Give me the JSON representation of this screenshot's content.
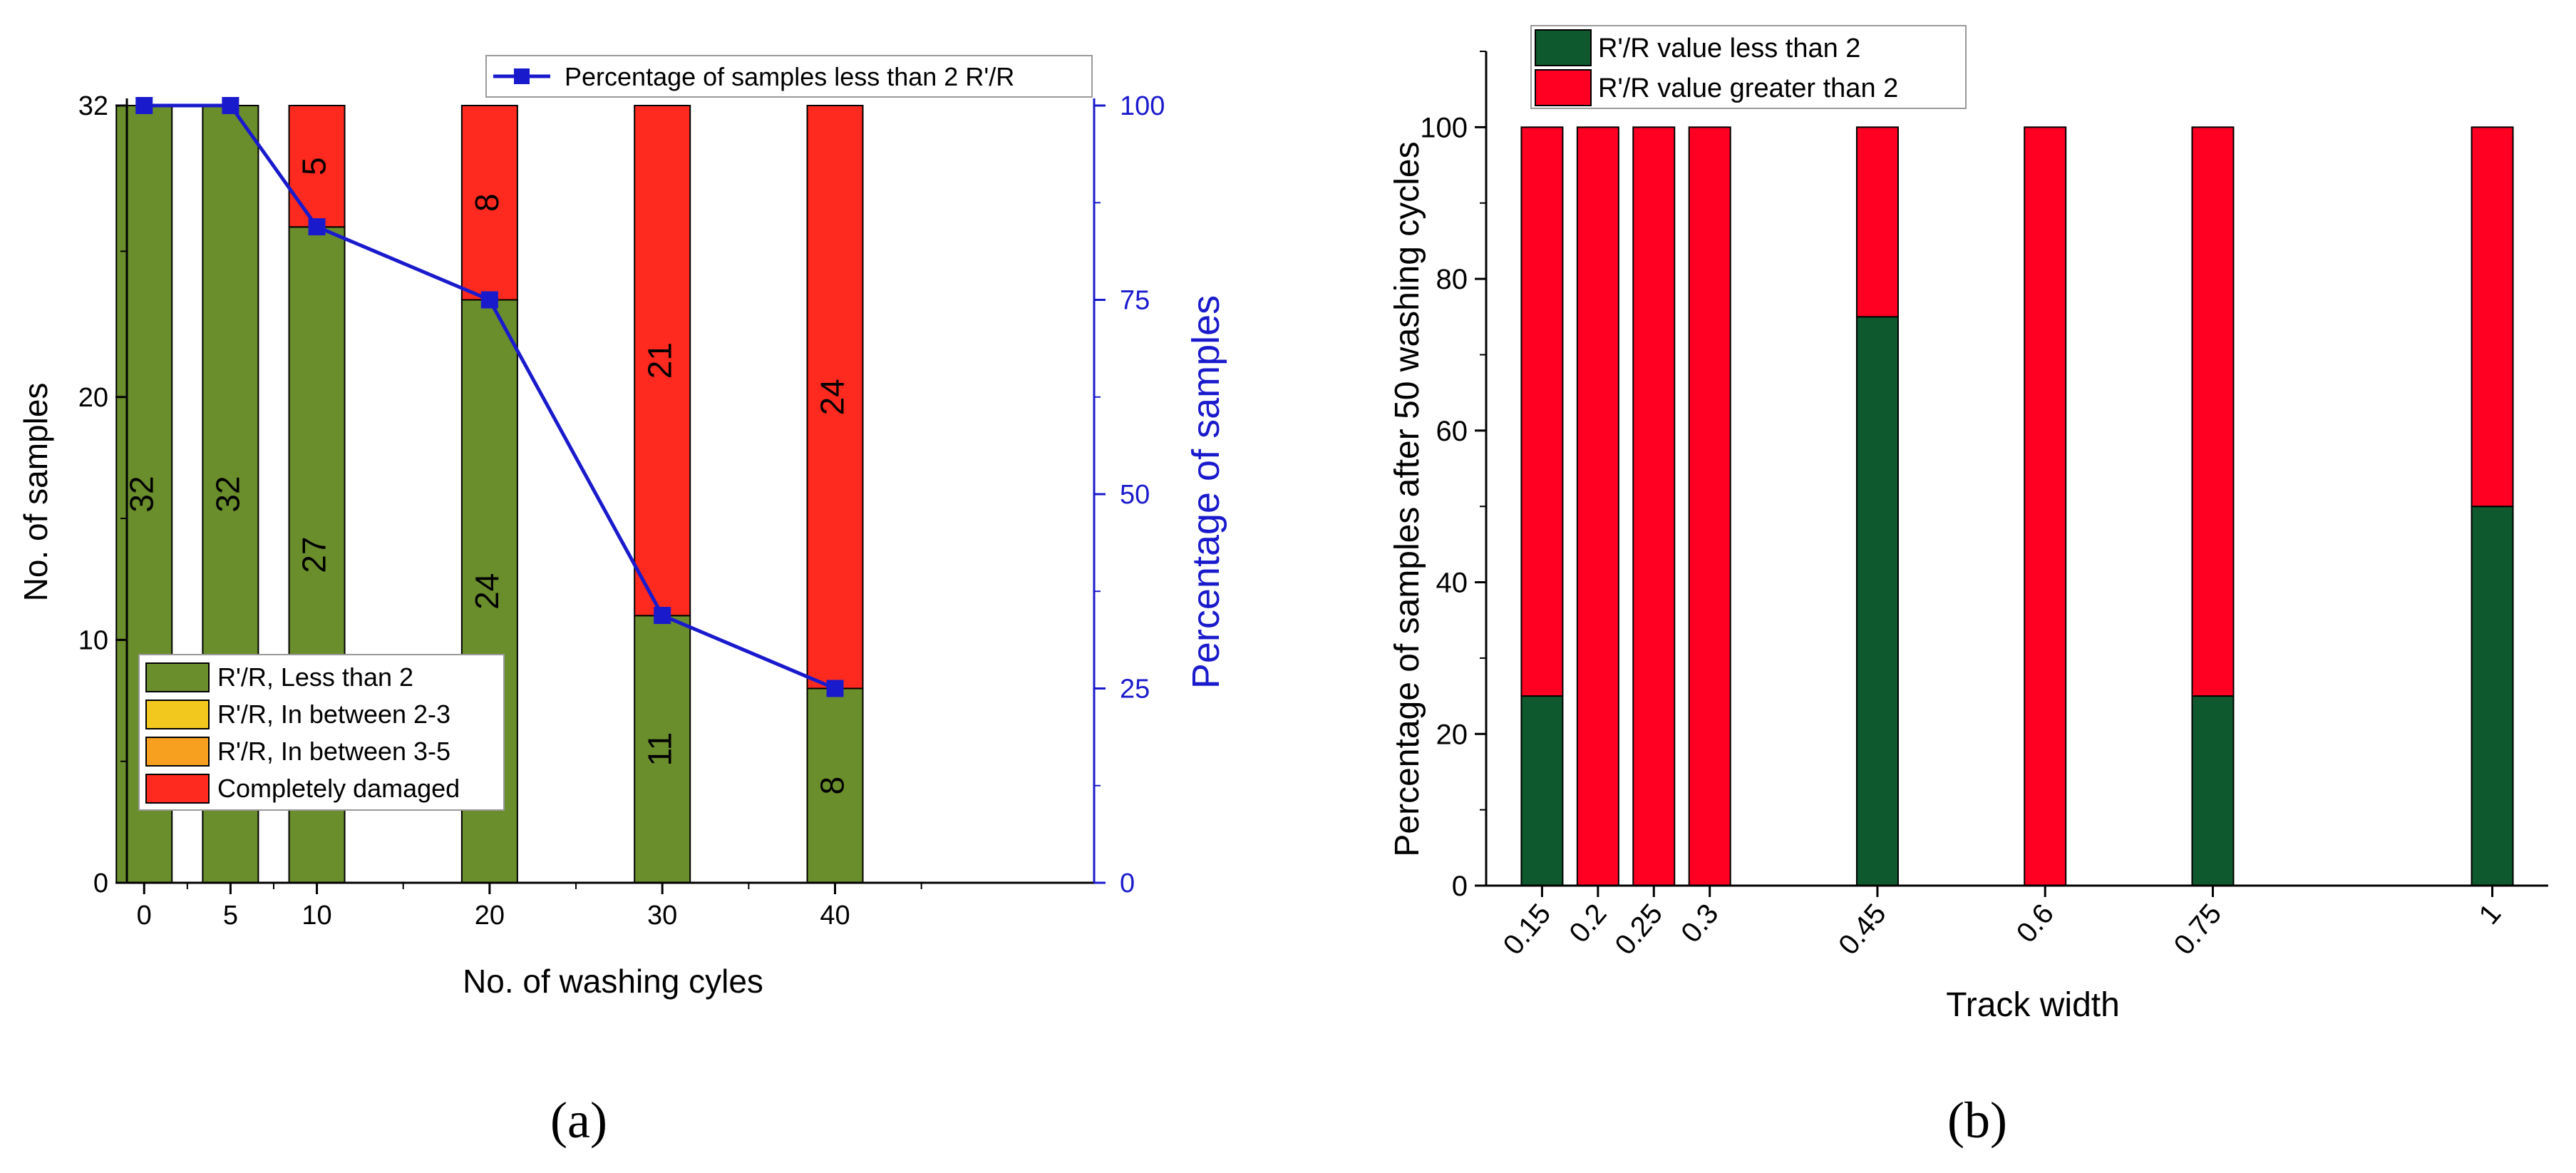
{
  "chart_data": [
    {
      "type": "bar",
      "panel": "a",
      "caption": "(a)",
      "categories": [
        "0",
        "5",
        "10",
        "20",
        "30",
        "40"
      ],
      "x": [
        0,
        5,
        10,
        20,
        30,
        40
      ],
      "xlabel": "No. of washing cyles",
      "ylabel": "No. of samples",
      "y2label": "Percentage of samples",
      "xlim": [
        -1,
        55
      ],
      "ylim": [
        0,
        32
      ],
      "y2lim": [
        0,
        100
      ],
      "xticks": [
        0,
        5,
        10,
        20,
        30,
        40
      ],
      "yticks": [
        0,
        10,
        20,
        32
      ],
      "y2ticks": [
        0,
        25,
        50,
        75,
        100
      ],
      "series": [
        {
          "name": "R'/R, Less than 2",
          "color": "#6b8e2c",
          "values": [
            32,
            32,
            27,
            24,
            11,
            8
          ],
          "labels": [
            "32",
            "32",
            "27",
            "24",
            "11",
            "8"
          ]
        },
        {
          "name": "R'/R, In between 2-3",
          "color": "#f2c81e",
          "values": [
            0,
            0,
            0,
            0,
            0,
            0
          ]
        },
        {
          "name": "R'/R, In between 3-5",
          "color": "#f7a020",
          "values": [
            0,
            0,
            0,
            0,
            0,
            0
          ]
        },
        {
          "name": "Completely damaged",
          "color": "#ff2a1f",
          "values": [
            0,
            0,
            5,
            8,
            21,
            24
          ],
          "labels": [
            "",
            "",
            "5",
            "8",
            "21",
            "24"
          ]
        }
      ],
      "line": {
        "name": "Percentage of samples less than 2 R'/R",
        "color": "#1a1acd",
        "x": [
          0,
          5,
          10,
          20,
          30,
          40
        ],
        "values": [
          100,
          100,
          84.4,
          75,
          34.4,
          25
        ]
      }
    },
    {
      "type": "bar",
      "panel": "b",
      "caption": "(b)",
      "categories": [
        "0.15",
        "0.2",
        "0.25",
        "0.3",
        "0.45",
        "0.6",
        "0.75",
        "1"
      ],
      "x": [
        0.15,
        0.2,
        0.25,
        0.3,
        0.45,
        0.6,
        0.75,
        1
      ],
      "xlabel": "Track width",
      "ylabel": "Percentage of samples after 50 washing cycles",
      "xlim": [
        0.1,
        1.05
      ],
      "ylim": [
        0,
        110
      ],
      "yticks": [
        0,
        20,
        40,
        60,
        80,
        100
      ],
      "series": [
        {
          "name": "R'/R value less than 2",
          "color": "#0e5a2e",
          "values": [
            25,
            0,
            0,
            0,
            75,
            0,
            25,
            50
          ]
        },
        {
          "name": "R'/R value greater than 2",
          "color": "#ff0022",
          "values": [
            75,
            100,
            100,
            100,
            25,
            100,
            75,
            50
          ]
        }
      ]
    }
  ]
}
